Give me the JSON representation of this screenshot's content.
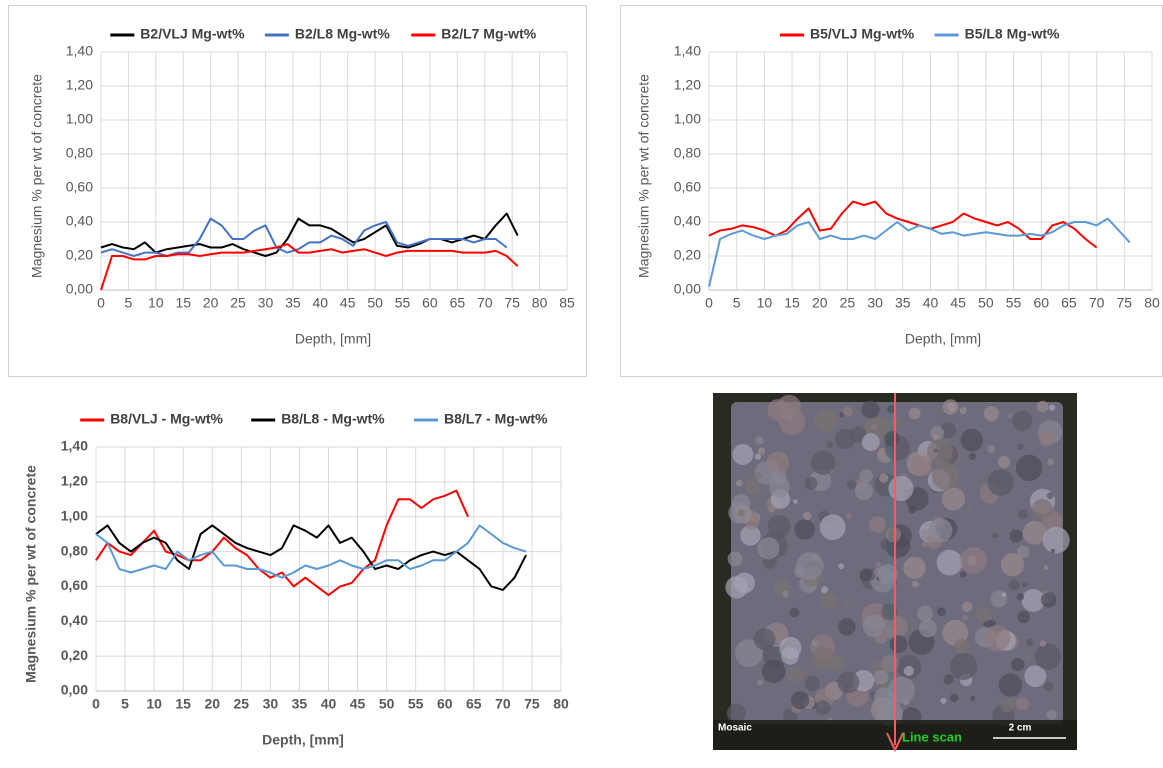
{
  "chart_data": [
    {
      "type": "line",
      "y_label": "Magnesium % per wt of concrete",
      "x_label": "Depth, [mm]",
      "x": [
        0,
        2,
        4,
        6,
        8,
        10,
        12,
        14,
        16,
        18,
        20,
        22,
        24,
        26,
        28,
        30,
        32,
        34,
        36,
        38,
        40,
        42,
        44,
        46,
        48,
        50,
        52,
        54,
        56,
        58,
        60,
        62,
        64,
        66,
        68,
        70,
        72,
        74,
        76
      ],
      "series": [
        {
          "name": "B2/VLJ Mg-wt%",
          "color": "#000000",
          "values": [
            0.25,
            0.27,
            0.25,
            0.24,
            0.28,
            0.22,
            0.24,
            0.25,
            0.26,
            0.27,
            0.25,
            0.25,
            0.27,
            0.24,
            0.22,
            0.2,
            0.22,
            0.3,
            0.42,
            0.38,
            0.38,
            0.36,
            0.32,
            0.28,
            0.3,
            0.34,
            0.38,
            0.26,
            0.25,
            0.27,
            0.3,
            0.3,
            0.28,
            0.3,
            0.32,
            0.3,
            0.38,
            0.45,
            0.32
          ]
        },
        {
          "name": "B2/L8 Mg-wt%",
          "color": "#4472c4",
          "values": [
            0.22,
            0.24,
            0.22,
            0.2,
            0.22,
            0.22,
            0.2,
            0.22,
            0.22,
            0.3,
            0.42,
            0.38,
            0.3,
            0.3,
            0.35,
            0.38,
            0.25,
            0.22,
            0.24,
            0.28,
            0.28,
            0.32,
            0.3,
            0.26,
            0.35,
            0.38,
            0.4,
            0.28,
            0.26,
            0.28,
            0.3,
            0.3,
            0.3,
            0.3,
            0.28,
            0.3,
            0.3,
            0.25,
            null
          ]
        },
        {
          "name": "B2/L7 Mg-wt%",
          "color": "#ff0000",
          "values": [
            0,
            0.2,
            0.2,
            0.18,
            0.18,
            0.2,
            0.2,
            0.21,
            0.21,
            0.2,
            0.21,
            0.22,
            0.22,
            0.22,
            0.23,
            0.24,
            0.25,
            0.27,
            0.22,
            0.22,
            0.23,
            0.24,
            0.22,
            0.23,
            0.24,
            0.22,
            0.2,
            0.22,
            0.23,
            0.23,
            0.23,
            0.23,
            0.23,
            0.22,
            0.22,
            0.22,
            0.23,
            0.2,
            0.14
          ]
        }
      ],
      "xlim": [
        0,
        85
      ],
      "xticks": [
        0,
        5,
        10,
        15,
        20,
        25,
        30,
        35,
        40,
        45,
        50,
        55,
        60,
        65,
        70,
        75,
        80,
        85
      ],
      "ylim": [
        0,
        1.4
      ],
      "yticks": [
        {
          "value": 0,
          "label": "0,00"
        },
        {
          "value": 0.2,
          "label": "0,20"
        },
        {
          "value": 0.4,
          "label": "0,40"
        },
        {
          "value": 0.6,
          "label": "0,60"
        },
        {
          "value": 0.8,
          "label": "0,80"
        },
        {
          "value": 1.0,
          "label": "1,00"
        },
        {
          "value": 1.2,
          "label": "1,20"
        },
        {
          "value": 1.4,
          "label": "1,40"
        }
      ],
      "grid": true,
      "legend": "top"
    },
    {
      "type": "line",
      "y_label": "Magnesium % per wt of concrete",
      "x_label": "Depth, [mm]",
      "x": [
        0,
        2,
        4,
        6,
        8,
        10,
        12,
        14,
        16,
        18,
        20,
        22,
        24,
        26,
        28,
        30,
        32,
        34,
        36,
        38,
        40,
        42,
        44,
        46,
        48,
        50,
        52,
        54,
        56,
        58,
        60,
        62,
        64,
        66,
        68,
        70,
        72,
        74,
        76
      ],
      "series": [
        {
          "name": "B5/VLJ Mg-wt%",
          "color": "#ff0000",
          "values": [
            0.32,
            0.35,
            0.36,
            0.38,
            0.37,
            0.35,
            0.32,
            0.35,
            0.42,
            0.48,
            0.35,
            0.36,
            0.45,
            0.52,
            0.5,
            0.52,
            0.45,
            0.42,
            0.4,
            0.38,
            0.36,
            0.38,
            0.4,
            0.45,
            0.42,
            0.4,
            0.38,
            0.4,
            0.36,
            0.3,
            0.3,
            0.38,
            0.4,
            0.36,
            0.3,
            0.25,
            null,
            null,
            null
          ]
        },
        {
          "name": "B5/L8 Mg-wt%",
          "color": "#5b9bd5",
          "values": [
            0.02,
            0.3,
            0.33,
            0.35,
            0.32,
            0.3,
            0.32,
            0.33,
            0.38,
            0.4,
            0.3,
            0.32,
            0.3,
            0.3,
            0.32,
            0.3,
            0.35,
            0.4,
            0.35,
            0.38,
            0.36,
            0.33,
            0.34,
            0.32,
            0.33,
            0.34,
            0.33,
            0.32,
            0.32,
            0.33,
            0.32,
            0.34,
            0.38,
            0.4,
            0.4,
            0.38,
            0.42,
            0.35,
            0.28
          ]
        }
      ],
      "xlim": [
        0,
        80
      ],
      "xticks": [
        0,
        5,
        10,
        15,
        20,
        25,
        30,
        35,
        40,
        45,
        50,
        55,
        60,
        65,
        70,
        75,
        80
      ],
      "ylim": [
        0,
        1.4
      ],
      "yticks": [
        {
          "value": 0,
          "label": "0,00"
        },
        {
          "value": 0.2,
          "label": "0,20"
        },
        {
          "value": 0.4,
          "label": "0,40"
        },
        {
          "value": 0.6,
          "label": "0,60"
        },
        {
          "value": 0.8,
          "label": "0,80"
        },
        {
          "value": 1.0,
          "label": "1,00"
        },
        {
          "value": 1.2,
          "label": "1,20"
        },
        {
          "value": 1.4,
          "label": "1,40"
        }
      ],
      "grid": true,
      "legend": "top"
    },
    {
      "type": "line",
      "y_label": "Magnesium % per wt of concrete",
      "x_label": "Depth, [mm]",
      "x": [
        0,
        2,
        4,
        6,
        8,
        10,
        12,
        14,
        16,
        18,
        20,
        22,
        24,
        26,
        28,
        30,
        32,
        34,
        36,
        38,
        40,
        42,
        44,
        46,
        48,
        50,
        52,
        54,
        56,
        58,
        60,
        62,
        64,
        66,
        68,
        70,
        72,
        74
      ],
      "series": [
        {
          "name": "B8/VLJ - Mg-wt%",
          "color": "#ff0000",
          "values": [
            0.75,
            0.85,
            0.8,
            0.78,
            0.85,
            0.92,
            0.8,
            0.78,
            0.75,
            0.75,
            0.8,
            0.88,
            0.82,
            0.78,
            0.7,
            0.65,
            0.68,
            0.6,
            0.65,
            0.6,
            0.55,
            0.6,
            0.62,
            0.7,
            0.75,
            0.95,
            1.1,
            1.1,
            1.05,
            1.1,
            1.12,
            1.15,
            1.0,
            null,
            null,
            null,
            null,
            null
          ]
        },
        {
          "name": "B8/L8 - Mg-wt%",
          "color": "#000000",
          "values": [
            0.9,
            0.95,
            0.85,
            0.8,
            0.85,
            0.88,
            0.85,
            0.75,
            0.7,
            0.9,
            0.95,
            0.9,
            0.85,
            0.82,
            0.8,
            0.78,
            0.82,
            0.95,
            0.92,
            0.88,
            0.95,
            0.85,
            0.88,
            0.8,
            0.7,
            0.72,
            0.7,
            0.75,
            0.78,
            0.8,
            0.78,
            0.8,
            0.75,
            0.7,
            0.6,
            0.58,
            0.65,
            0.78
          ]
        },
        {
          "name": "B8/L7 - Mg-wt%",
          "color": "#5b9bd5",
          "values": [
            0.9,
            0.85,
            0.7,
            0.68,
            0.7,
            0.72,
            0.7,
            0.8,
            0.75,
            0.78,
            0.8,
            0.72,
            0.72,
            0.7,
            0.7,
            0.68,
            0.65,
            0.68,
            0.72,
            0.7,
            0.72,
            0.75,
            0.72,
            0.7,
            0.72,
            0.75,
            0.75,
            0.7,
            0.72,
            0.75,
            0.75,
            0.8,
            0.85,
            0.95,
            0.9,
            0.85,
            0.82,
            0.8
          ]
        }
      ],
      "xlim": [
        0,
        80
      ],
      "xticks": [
        0,
        5,
        10,
        15,
        20,
        25,
        30,
        35,
        40,
        45,
        50,
        55,
        60,
        65,
        70,
        75,
        80
      ],
      "ylim": [
        0,
        1.4
      ],
      "yticks": [
        {
          "value": 0,
          "label": "0,00"
        },
        {
          "value": 0.2,
          "label": "0,20"
        },
        {
          "value": 0.4,
          "label": "0,40"
        },
        {
          "value": 0.6,
          "label": "0,60"
        },
        {
          "value": 0.8,
          "label": "0,80"
        },
        {
          "value": 1.0,
          "label": "1,00"
        },
        {
          "value": 1.2,
          "label": "1,20"
        },
        {
          "value": 1.4,
          "label": "1,40"
        }
      ],
      "grid": true,
      "legend": "top"
    }
  ],
  "image": {
    "labels": {
      "mosaic": "Mosaic",
      "line_scan": "Line scan",
      "scale": "2 cm"
    }
  }
}
